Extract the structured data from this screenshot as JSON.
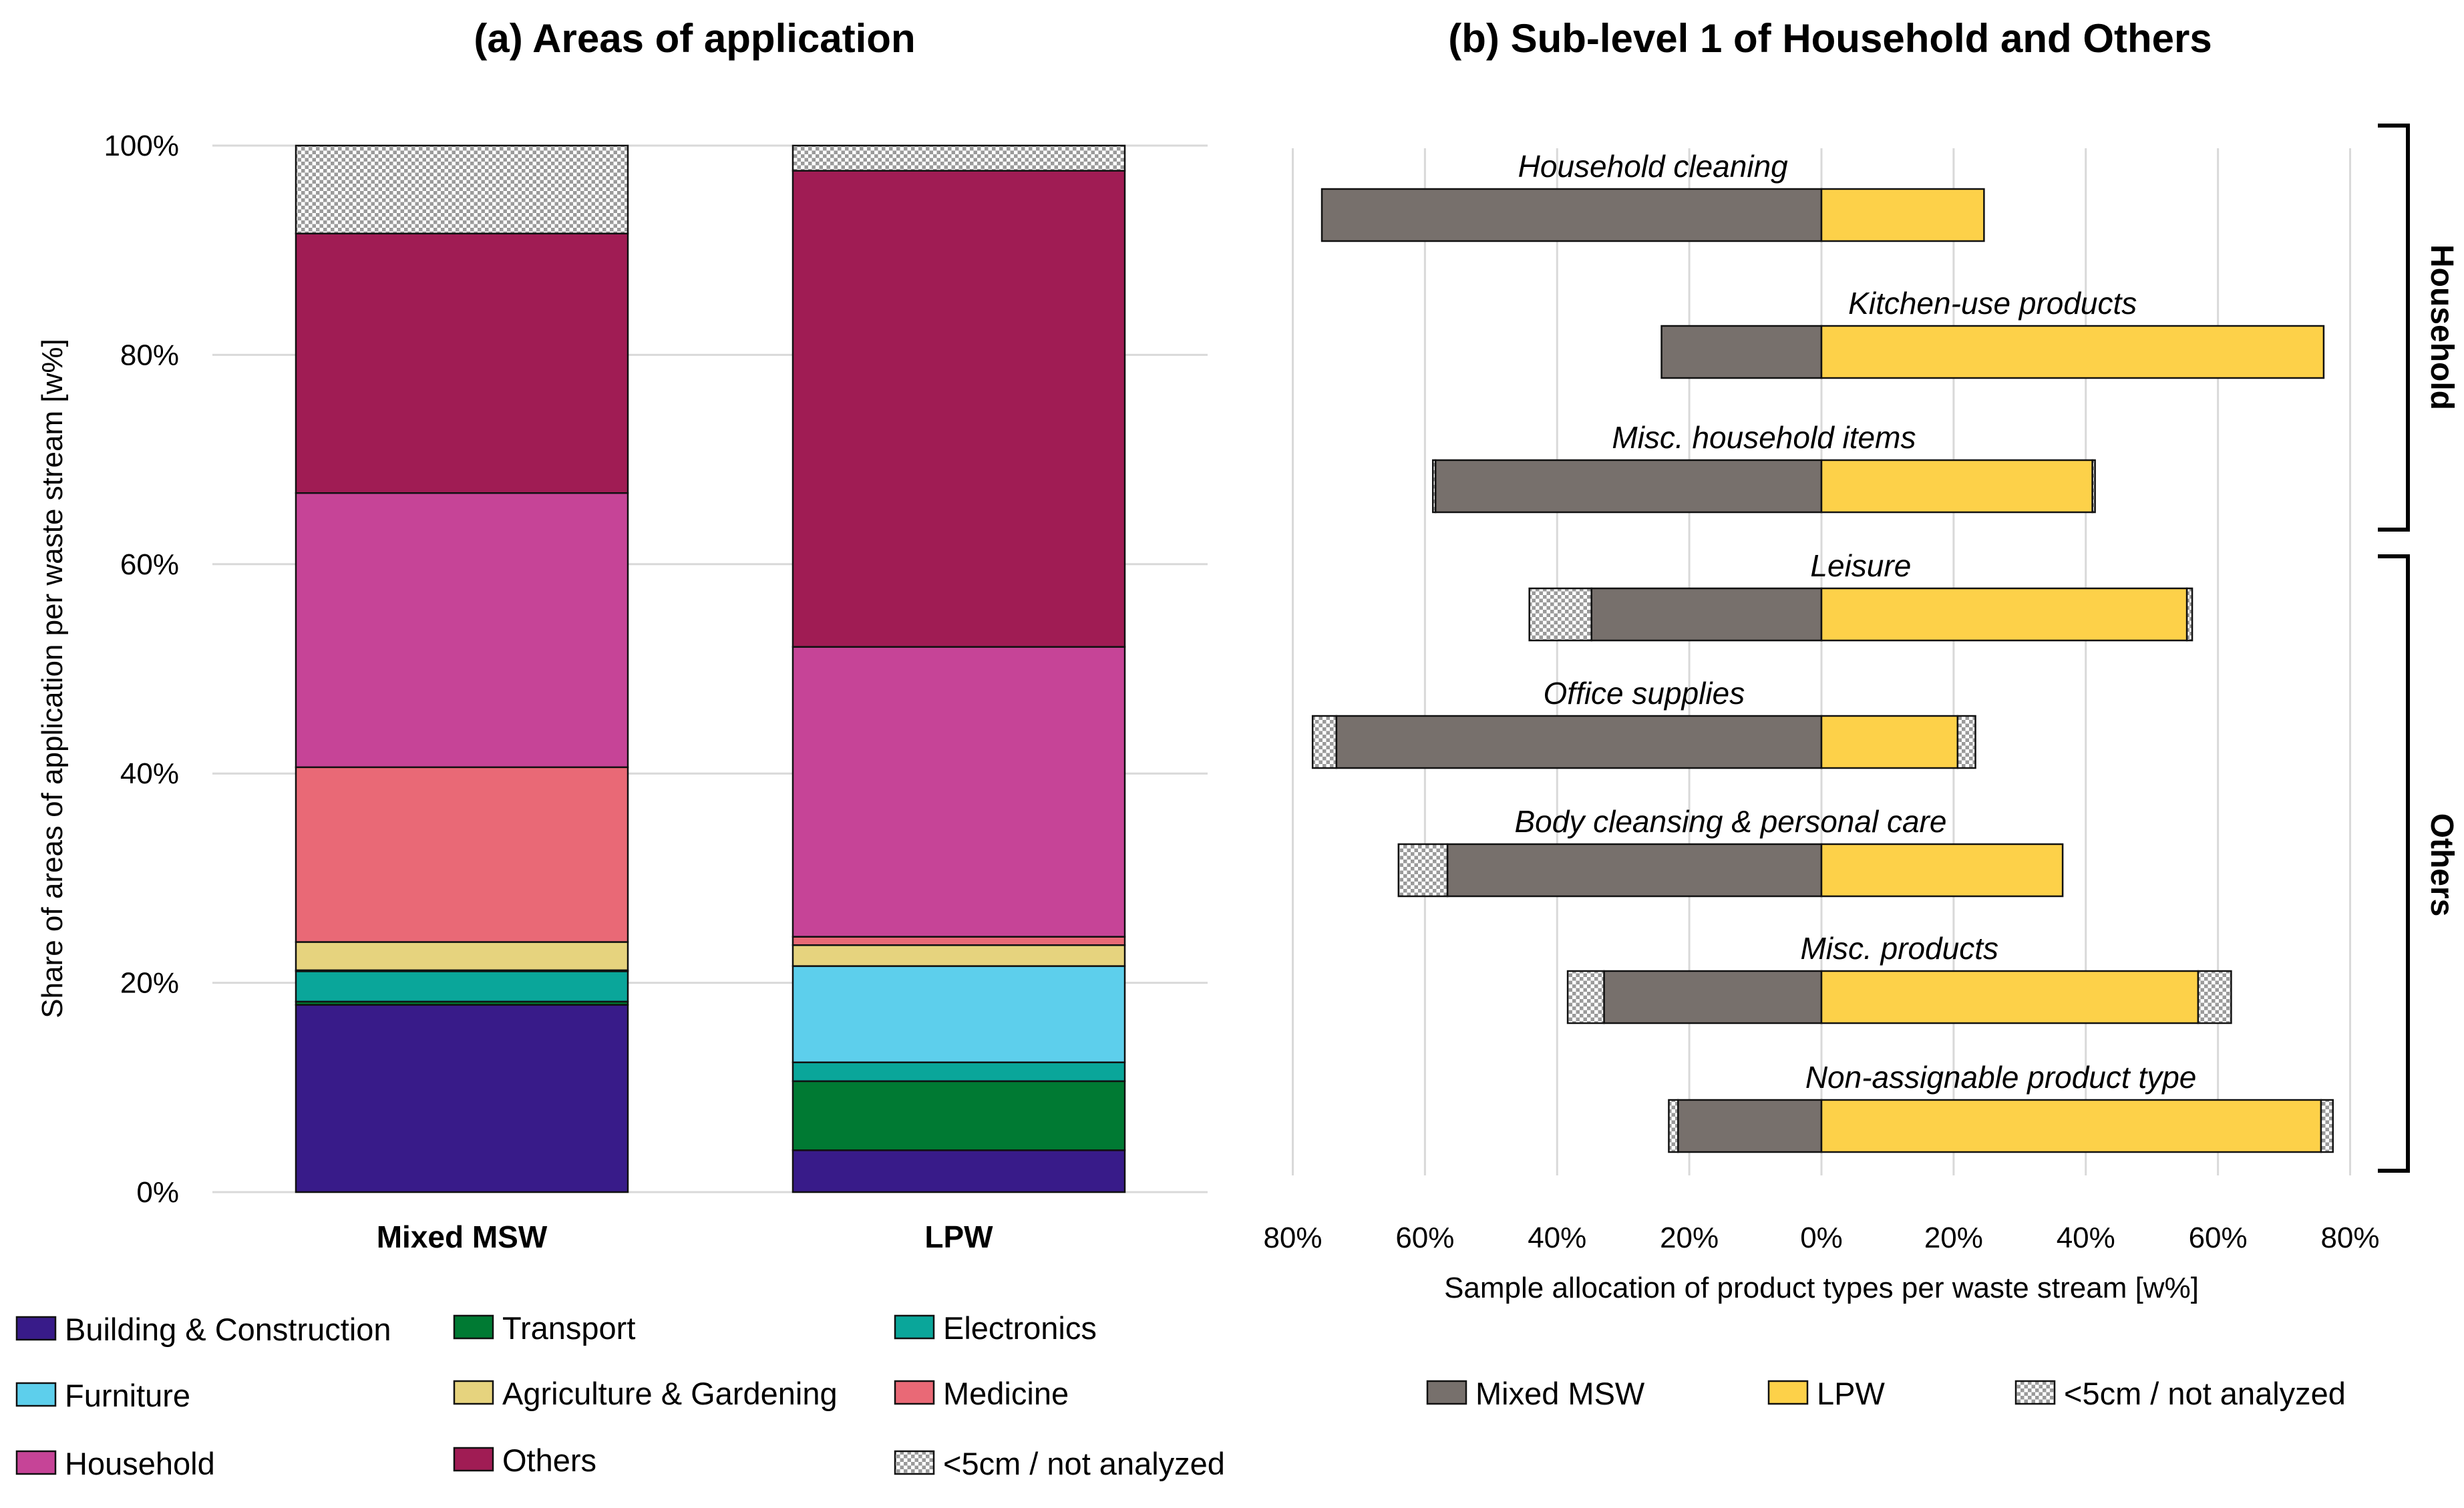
{
  "panel_a": {
    "title": "(a) Areas of application",
    "ylabel": "Share of areas of application per waste stream [w%]"
  },
  "panel_b": {
    "title": "(b) Sub-level 1 of Household and Others",
    "xlabel": "Sample allocation of product types per waste stream [w%]",
    "group_labels": [
      "Household",
      "Others"
    ]
  },
  "colors": {
    "Building & Construction": "#381b89",
    "Transport": "#007a33",
    "Electronics": "#0aa69a",
    "Furniture": "#5dcfec",
    "Agriculture & Gardening": "#e6d37e",
    "Medicine": "#e96976",
    "Household": "#c64497",
    "Others": "#a01c54",
    "<5cm / not analyzed": "pattern",
    "Mixed MSW": "#77706c",
    "LPW": "#fdd149"
  },
  "chart_data": [
    {
      "type": "bar",
      "stacked": true,
      "title": "(a) Areas of application",
      "xlabel": "",
      "ylabel": "Share of areas of application per waste stream [w%]",
      "categories": [
        "Mixed MSW",
        "LPW"
      ],
      "ylim": [
        0,
        100
      ],
      "yticks": [
        "0%",
        "20%",
        "40%",
        "60%",
        "80%",
        "100%"
      ],
      "series": [
        {
          "name": "Building & Construction",
          "values": [
            17.9,
            4.0
          ]
        },
        {
          "name": "Transport",
          "values": [
            0.3,
            6.6
          ]
        },
        {
          "name": "Electronics",
          "values": [
            2.9,
            1.8
          ]
        },
        {
          "name": "Furniture",
          "values": [
            0.1,
            9.2
          ]
        },
        {
          "name": "Agriculture & Gardening",
          "values": [
            2.7,
            2.0
          ]
        },
        {
          "name": "Medicine",
          "values": [
            16.7,
            0.8
          ]
        },
        {
          "name": "Household",
          "values": [
            26.2,
            27.7
          ]
        },
        {
          "name": "Others",
          "values": [
            24.8,
            45.5
          ]
        },
        {
          "name": "<5cm / not analyzed",
          "values": [
            8.4,
            2.4
          ]
        }
      ],
      "legend_position": "bottom"
    },
    {
      "type": "bar",
      "orientation": "horizontal",
      "diverging": true,
      "title": "(b) Sub-level 1 of Household and Others",
      "xlabel": "Sample allocation of product types per waste stream [w%]",
      "xlim": [
        -80,
        80
      ],
      "xticks": [
        "80%",
        "60%",
        "40%",
        "20%",
        "0%",
        "20%",
        "40%",
        "60%",
        "80%"
      ],
      "categories": [
        "Household cleaning",
        "Kitchen-use products",
        "Misc. household items",
        "Leisure",
        "Office supplies",
        "Body cleansing & personal care",
        "Misc. products",
        "Non-assignable product type"
      ],
      "series": [
        {
          "name": "Mixed MSW",
          "side": "left",
          "values": [
            75.6,
            24.2,
            58.4,
            34.8,
            73.4,
            56.6,
            32.9,
            21.7
          ]
        },
        {
          "name": "<5cm / not analyzed (Mixed MSW)",
          "side": "left",
          "values": [
            0,
            0,
            0.4,
            9.4,
            3.6,
            7.4,
            5.5,
            1.4
          ]
        },
        {
          "name": "LPW",
          "side": "right",
          "values": [
            24.6,
            76.0,
            41.0,
            55.3,
            20.6,
            36.5,
            57.0,
            75.6
          ]
        },
        {
          "name": "<5cm / not analyzed (LPW)",
          "side": "right",
          "values": [
            0,
            0,
            0.4,
            0.8,
            2.7,
            0,
            5.0,
            1.8
          ]
        }
      ],
      "groups": [
        {
          "name": "Household",
          "categories": [
            "Household cleaning",
            "Kitchen-use products",
            "Misc. household items"
          ]
        },
        {
          "name": "Others",
          "categories": [
            "Leisure",
            "Office supplies",
            "Body cleansing & personal care",
            "Misc. products",
            "Non-assignable product type"
          ]
        }
      ],
      "legend": [
        "Mixed MSW",
        "LPW",
        "<5cm / not analyzed"
      ],
      "legend_position": "bottom"
    }
  ]
}
